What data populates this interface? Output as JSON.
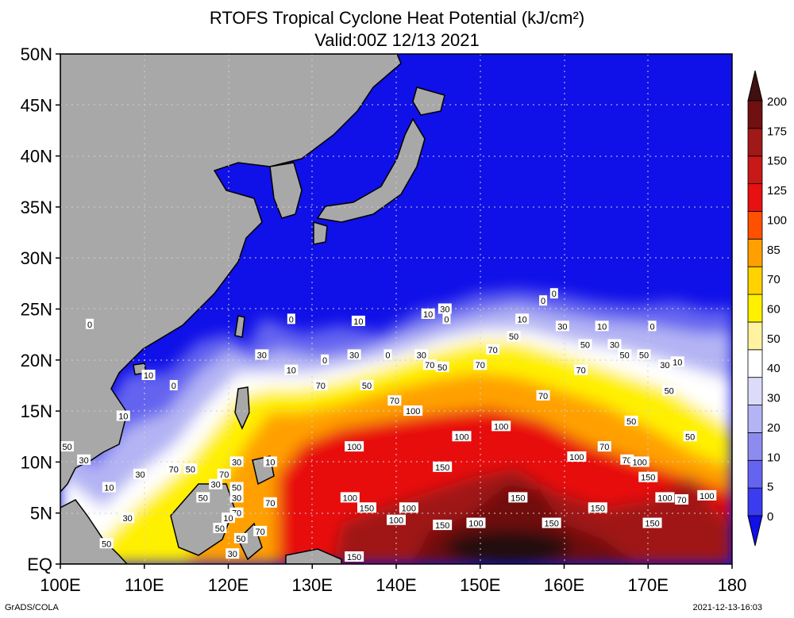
{
  "title": "RTOFS Tropical Cyclone Heat Potential (kJ/cm²)",
  "subtitle": "Valid:00Z 12/13 2021",
  "credit": "GrADS/COLA",
  "timestamp": "2021-12-13-16:03",
  "axes": {
    "lon_ticks": [
      "100E",
      "110E",
      "120E",
      "130E",
      "140E",
      "150E",
      "160E",
      "170E",
      "180"
    ],
    "lat_ticks": [
      "50N",
      "45N",
      "40N",
      "35N",
      "30N",
      "25N",
      "20N",
      "15N",
      "10N",
      "5N",
      "EQ"
    ],
    "lon_range": [
      100,
      180
    ],
    "lat_range": [
      0,
      50
    ],
    "gridlines": "dotted"
  },
  "colorbar": {
    "levels": [
      "0",
      "5",
      "10",
      "20",
      "30",
      "40",
      "50",
      "60",
      "70",
      "85",
      "100",
      "125",
      "150",
      "175",
      "200"
    ],
    "colors": [
      "#1010e8",
      "#3b3bf0",
      "#6464f0",
      "#8c8cf0",
      "#b4b4f4",
      "#dcdcfa",
      "#ffffff",
      "#fff2a0",
      "#fff000",
      "#ffd200",
      "#ffa000",
      "#ff5000",
      "#e81010",
      "#c81818",
      "#a01818",
      "#701010",
      "#401010"
    ],
    "extends": "both"
  },
  "colors": {
    "land": "#a8a8a8",
    "ocean_low": "#1010e8"
  },
  "contour_labels": [
    {
      "text": "0",
      "lon": 103.5,
      "lat": 23.5
    },
    {
      "text": "10",
      "lon": 110.5,
      "lat": 18.5
    },
    {
      "text": "0",
      "lon": 113.5,
      "lat": 17.5
    },
    {
      "text": "10",
      "lon": 107.5,
      "lat": 14.5
    },
    {
      "text": "50",
      "lon": 100.8,
      "lat": 11.5
    },
    {
      "text": "30",
      "lon": 102.8,
      "lat": 10.2
    },
    {
      "text": "10",
      "lon": 105.8,
      "lat": 7.5
    },
    {
      "text": "30",
      "lon": 109.5,
      "lat": 8.8
    },
    {
      "text": "70",
      "lon": 113.5,
      "lat": 9.3
    },
    {
      "text": "50",
      "lon": 115.5,
      "lat": 9.3
    },
    {
      "text": "50",
      "lon": 117.0,
      "lat": 6.5
    },
    {
      "text": "30",
      "lon": 118.5,
      "lat": 7.8
    },
    {
      "text": "30",
      "lon": 108.0,
      "lat": 4.5
    },
    {
      "text": "50",
      "lon": 105.5,
      "lat": 2.0
    },
    {
      "text": "0",
      "lon": 127.5,
      "lat": 24.0
    },
    {
      "text": "10",
      "lon": 135.5,
      "lat": 23.8
    },
    {
      "text": "30",
      "lon": 124.0,
      "lat": 20.5
    },
    {
      "text": "10",
      "lon": 127.5,
      "lat": 19.0
    },
    {
      "text": "0",
      "lon": 131.5,
      "lat": 20.0
    },
    {
      "text": "30",
      "lon": 135.0,
      "lat": 20.5
    },
    {
      "text": "0",
      "lon": 139.0,
      "lat": 20.5
    },
    {
      "text": "70",
      "lon": 131.0,
      "lat": 17.5
    },
    {
      "text": "50",
      "lon": 136.5,
      "lat": 17.5
    },
    {
      "text": "70",
      "lon": 139.8,
      "lat": 16.0
    },
    {
      "text": "100",
      "lon": 142.0,
      "lat": 15.0
    },
    {
      "text": "10",
      "lon": 143.8,
      "lat": 24.5
    },
    {
      "text": "30",
      "lon": 145.8,
      "lat": 25.0
    },
    {
      "text": "0",
      "lon": 146.0,
      "lat": 24.0
    },
    {
      "text": "30",
      "lon": 143.0,
      "lat": 20.5
    },
    {
      "text": "70",
      "lon": 144.0,
      "lat": 19.5
    },
    {
      "text": "50",
      "lon": 145.5,
      "lat": 19.3
    },
    {
      "text": "70",
      "lon": 151.5,
      "lat": 21.0
    },
    {
      "text": "50",
      "lon": 154.0,
      "lat": 22.3
    },
    {
      "text": "70",
      "lon": 150.0,
      "lat": 19.5
    },
    {
      "text": "0",
      "lon": 158.8,
      "lat": 26.5
    },
    {
      "text": "0",
      "lon": 157.5,
      "lat": 25.8
    },
    {
      "text": "10",
      "lon": 155.0,
      "lat": 24.0
    },
    {
      "text": "30",
      "lon": 159.8,
      "lat": 23.3
    },
    {
      "text": "10",
      "lon": 164.5,
      "lat": 23.3
    },
    {
      "text": "0",
      "lon": 170.5,
      "lat": 23.3
    },
    {
      "text": "50",
      "lon": 162.5,
      "lat": 21.5
    },
    {
      "text": "30",
      "lon": 166.0,
      "lat": 21.5
    },
    {
      "text": "50",
      "lon": 167.2,
      "lat": 20.5
    },
    {
      "text": "50",
      "lon": 169.5,
      "lat": 20.5
    },
    {
      "text": "30",
      "lon": 172.0,
      "lat": 19.5
    },
    {
      "text": "10",
      "lon": 173.5,
      "lat": 19.8
    },
    {
      "text": "70",
      "lon": 162.0,
      "lat": 19.0
    },
    {
      "text": "70",
      "lon": 157.5,
      "lat": 16.5
    },
    {
      "text": "50",
      "lon": 172.5,
      "lat": 17.0
    },
    {
      "text": "50",
      "lon": 168.0,
      "lat": 14.0
    },
    {
      "text": "50",
      "lon": 175.0,
      "lat": 12.5
    },
    {
      "text": "100",
      "lon": 147.8,
      "lat": 12.5
    },
    {
      "text": "100",
      "lon": 152.5,
      "lat": 13.5
    },
    {
      "text": "100",
      "lon": 135.0,
      "lat": 11.5
    },
    {
      "text": "150",
      "lon": 145.5,
      "lat": 9.5
    },
    {
      "text": "100",
      "lon": 161.5,
      "lat": 10.5
    },
    {
      "text": "70",
      "lon": 164.8,
      "lat": 11.5
    },
    {
      "text": "70",
      "lon": 167.5,
      "lat": 10.2
    },
    {
      "text": "100",
      "lon": 169.0,
      "lat": 10.0
    },
    {
      "text": "150",
      "lon": 170.0,
      "lat": 8.5
    },
    {
      "text": "100",
      "lon": 172.0,
      "lat": 6.5
    },
    {
      "text": "70",
      "lon": 174.0,
      "lat": 6.3
    },
    {
      "text": "100",
      "lon": 177.0,
      "lat": 6.7
    },
    {
      "text": "70",
      "lon": 125.0,
      "lat": 6.0
    },
    {
      "text": "100",
      "lon": 134.5,
      "lat": 6.5
    },
    {
      "text": "150",
      "lon": 136.5,
      "lat": 5.5
    },
    {
      "text": "100",
      "lon": 141.5,
      "lat": 5.5
    },
    {
      "text": "100",
      "lon": 140.0,
      "lat": 4.3
    },
    {
      "text": "150",
      "lon": 145.5,
      "lat": 3.8
    },
    {
      "text": "100",
      "lon": 149.5,
      "lat": 4.0
    },
    {
      "text": "150",
      "lon": 154.5,
      "lat": 6.5
    },
    {
      "text": "150",
      "lon": 164.0,
      "lat": 5.5
    },
    {
      "text": "150",
      "lon": 158.5,
      "lat": 4.0
    },
    {
      "text": "150",
      "lon": 170.5,
      "lat": 4.0
    },
    {
      "text": "150",
      "lon": 135.0,
      "lat": 0.7
    },
    {
      "text": "70",
      "lon": 119.5,
      "lat": 8.8
    },
    {
      "text": "50",
      "lon": 121.0,
      "lat": 7.5
    },
    {
      "text": "30",
      "lon": 121.0,
      "lat": 10.0
    },
    {
      "text": "10",
      "lon": 125.0,
      "lat": 10.0
    },
    {
      "text": "70",
      "lon": 121.0,
      "lat": 5.0
    },
    {
      "text": "30",
      "lon": 121.0,
      "lat": 6.5
    },
    {
      "text": "10",
      "lon": 120.0,
      "lat": 4.5
    },
    {
      "text": "50",
      "lon": 119.0,
      "lat": 3.5
    },
    {
      "text": "50",
      "lon": 121.5,
      "lat": 2.5
    },
    {
      "text": "70",
      "lon": 123.8,
      "lat": 3.2
    },
    {
      "text": "30",
      "lon": 120.5,
      "lat": 1.0
    }
  ]
}
